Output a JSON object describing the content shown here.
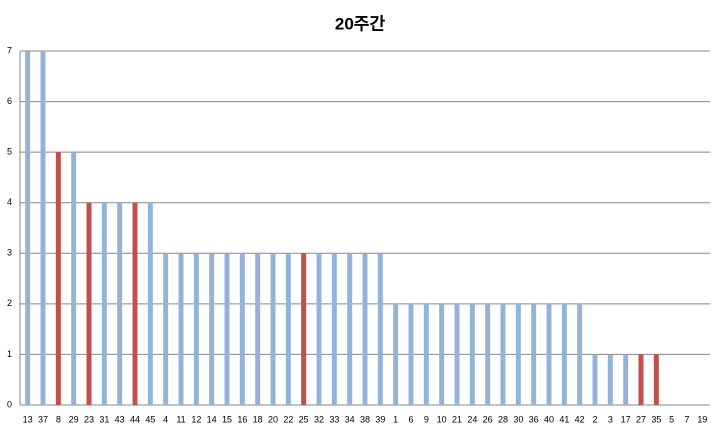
{
  "chart_data": {
    "type": "bar",
    "title": "20주간",
    "categories": [
      "13",
      "37",
      "8",
      "29",
      "23",
      "31",
      "43",
      "44",
      "45",
      "4",
      "11",
      "12",
      "14",
      "15",
      "16",
      "18",
      "20",
      "22",
      "25",
      "32",
      "33",
      "34",
      "38",
      "39",
      "1",
      "6",
      "9",
      "10",
      "21",
      "24",
      "26",
      "28",
      "30",
      "36",
      "40",
      "41",
      "42",
      "2",
      "3",
      "17",
      "27",
      "35",
      "5",
      "7",
      "19"
    ],
    "values": [
      7,
      7,
      5,
      5,
      4,
      4,
      4,
      4,
      4,
      3,
      3,
      3,
      3,
      3,
      3,
      3,
      3,
      3,
      3,
      3,
      3,
      3,
      3,
      3,
      2,
      2,
      2,
      2,
      2,
      2,
      2,
      2,
      2,
      2,
      2,
      2,
      2,
      1,
      1,
      1,
      1,
      1,
      0,
      0,
      0
    ],
    "colors": [
      "#95b3d7",
      "#95b3d7",
      "#c0504d",
      "#95b3d7",
      "#c0504d",
      "#95b3d7",
      "#95b3d7",
      "#c0504d",
      "#95b3d7",
      "#95b3d7",
      "#95b3d7",
      "#95b3d7",
      "#95b3d7",
      "#95b3d7",
      "#95b3d7",
      "#95b3d7",
      "#95b3d7",
      "#95b3d7",
      "#c0504d",
      "#95b3d7",
      "#95b3d7",
      "#95b3d7",
      "#95b3d7",
      "#95b3d7",
      "#95b3d7",
      "#95b3d7",
      "#95b3d7",
      "#95b3d7",
      "#95b3d7",
      "#95b3d7",
      "#95b3d7",
      "#95b3d7",
      "#95b3d7",
      "#95b3d7",
      "#95b3d7",
      "#95b3d7",
      "#95b3d7",
      "#95b3d7",
      "#95b3d7",
      "#95b3d7",
      "#c0504d",
      "#c0504d",
      "#95b3d7",
      "#95b3d7",
      "#95b3d7"
    ],
    "ylim": [
      0,
      7
    ],
    "yticks": [
      0,
      1,
      2,
      3,
      4,
      5,
      6,
      7
    ],
    "grid": true
  }
}
